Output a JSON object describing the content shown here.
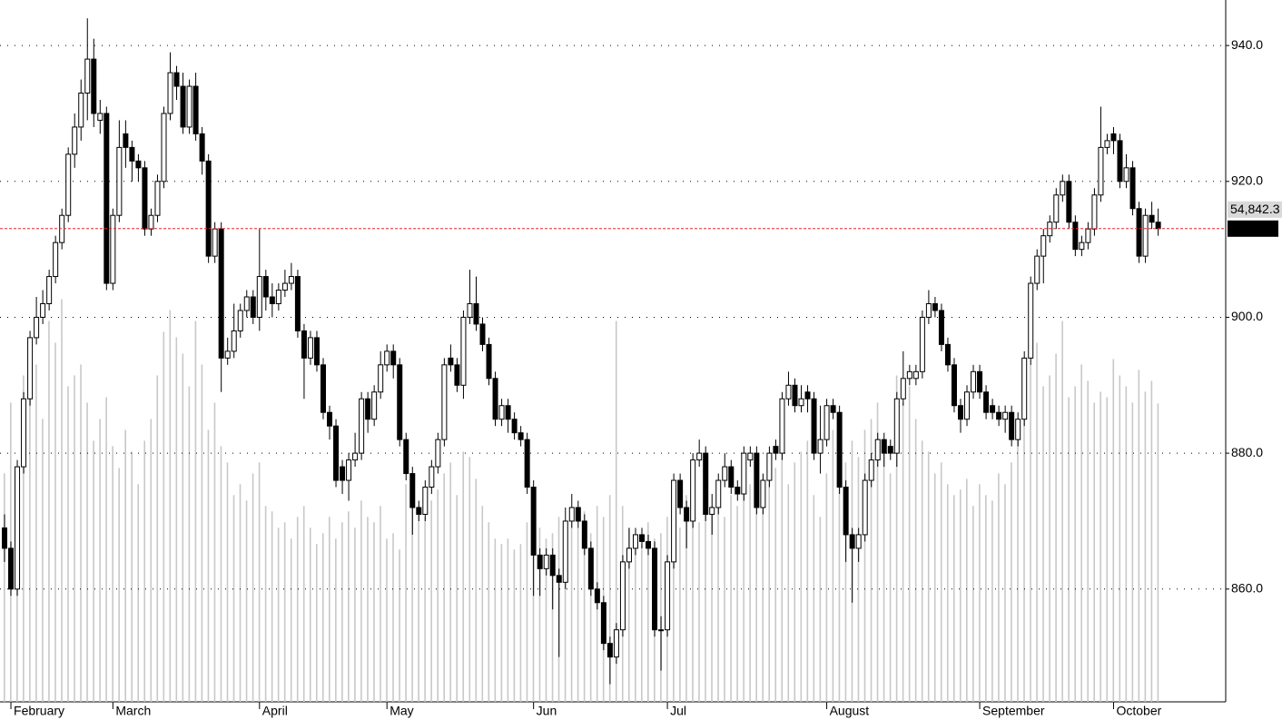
{
  "chart_data": {
    "type": "candlestick",
    "categories": [
      null,
      "February",
      null,
      null,
      null,
      null,
      null,
      null,
      null,
      null,
      null,
      null,
      null,
      null,
      null,
      null,
      null,
      "March",
      null,
      null,
      null,
      null,
      null,
      null,
      null,
      null,
      null,
      null,
      null,
      null,
      null,
      null,
      null,
      null,
      null,
      null,
      null,
      null,
      null,
      null,
      "April",
      null,
      null,
      null,
      null,
      null,
      null,
      null,
      null,
      null,
      null,
      null,
      null,
      null,
      null,
      null,
      null,
      null,
      null,
      null,
      "May",
      null,
      null,
      null,
      null,
      null,
      null,
      null,
      null,
      null,
      null,
      null,
      null,
      null,
      null,
      null,
      null,
      null,
      null,
      null,
      null,
      null,
      null,
      "Jun",
      null,
      null,
      null,
      null,
      null,
      null,
      null,
      null,
      null,
      null,
      null,
      null,
      null,
      null,
      null,
      null,
      null,
      null,
      null,
      null,
      "Jul",
      null,
      null,
      null,
      null,
      null,
      null,
      null,
      null,
      null,
      null,
      null,
      null,
      null,
      null,
      null,
      null,
      null,
      null,
      null,
      null,
      null,
      null,
      null,
      null,
      "August",
      null,
      null,
      null,
      null,
      null,
      null,
      null,
      null,
      null,
      null,
      null,
      null,
      null,
      null,
      null,
      null,
      null,
      null,
      null,
      null,
      null,
      null,
      null,
      "September",
      null,
      null,
      null,
      null,
      null,
      null,
      null,
      null,
      null,
      null,
      null,
      null,
      null,
      null,
      null,
      null,
      null,
      null,
      null,
      null,
      "October",
      null,
      null,
      null,
      null,
      null,
      null,
      null
    ],
    "open": [
      869,
      866,
      860,
      878,
      888,
      897,
      900,
      902,
      906,
      911,
      915,
      924,
      928,
      933,
      938,
      929,
      930,
      905,
      915,
      927,
      925,
      923,
      922,
      913,
      915,
      920,
      930,
      936,
      934,
      928,
      934,
      927,
      923,
      909,
      913,
      894,
      895,
      898,
      901,
      903,
      900,
      906,
      903,
      902,
      904,
      905,
      906,
      898,
      894,
      897,
      893,
      886,
      884,
      878,
      876,
      879,
      880,
      888,
      885,
      889,
      893,
      895,
      893,
      882,
      877,
      872,
      871,
      875,
      878,
      882,
      894,
      893,
      890,
      900,
      902,
      899,
      896,
      891,
      885,
      887,
      885,
      883,
      882,
      875,
      865,
      863,
      865,
      862,
      861,
      870,
      872,
      870,
      866,
      860,
      858,
      852,
      850,
      854,
      864,
      866,
      868,
      867,
      866,
      854,
      854,
      864,
      876,
      872,
      870,
      879,
      880,
      871,
      872,
      876,
      878,
      875,
      874,
      879,
      880,
      872,
      876,
      881,
      880,
      888,
      890,
      887,
      889,
      888,
      880,
      882,
      887,
      886,
      875,
      868,
      866,
      868,
      876,
      879,
      882,
      881,
      880,
      888,
      891,
      891,
      892,
      900,
      902,
      901,
      896,
      893,
      887,
      885,
      889,
      892,
      889,
      887,
      886,
      885,
      886,
      882,
      885,
      894,
      905,
      909,
      912,
      914,
      918,
      920,
      914,
      910,
      911,
      913,
      918,
      925,
      927,
      926,
      920,
      922,
      916,
      909,
      915,
      914
    ],
    "high": [
      871,
      867,
      879,
      889,
      898,
      903,
      904,
      907,
      912,
      916,
      925,
      930,
      935,
      944,
      941,
      932,
      931,
      916,
      929,
      929,
      926,
      924,
      923,
      916,
      921,
      931,
      939,
      937,
      936,
      935,
      936,
      928,
      924,
      914,
      914,
      897,
      902,
      902,
      904,
      904,
      913,
      907,
      905,
      905,
      907,
      908,
      907,
      899,
      898,
      898,
      894,
      887,
      885,
      879,
      880,
      883,
      889,
      889,
      890,
      895,
      896,
      896,
      894,
      883,
      878,
      873,
      876,
      879,
      883,
      894,
      896,
      894,
      901,
      907,
      906,
      900,
      897,
      892,
      888,
      888,
      886,
      884,
      883,
      876,
      866,
      866,
      866,
      863,
      872,
      874,
      873,
      871,
      867,
      861,
      859,
      853,
      855,
      865,
      869,
      869,
      869,
      868,
      867,
      856,
      865,
      877,
      877,
      873,
      880,
      882,
      881,
      874,
      877,
      880,
      879,
      876,
      881,
      881,
      881,
      877,
      881,
      882,
      889,
      892,
      891,
      890,
      890,
      889,
      887,
      888,
      888,
      887,
      876,
      869,
      869,
      877,
      880,
      883,
      883,
      882,
      889,
      895,
      893,
      893,
      901,
      904,
      903,
      902,
      897,
      894,
      888,
      890,
      893,
      893,
      890,
      888,
      887,
      887,
      887,
      886,
      895,
      906,
      910,
      913,
      915,
      919,
      921,
      921,
      915,
      912,
      914,
      919,
      931,
      927,
      928,
      927,
      924,
      923,
      917,
      916,
      917,
      916
    ],
    "low": [
      864,
      859,
      859,
      877,
      887,
      896,
      899,
      901,
      905,
      910,
      914,
      922,
      926,
      929,
      928,
      927,
      904,
      904,
      914,
      922,
      920,
      920,
      912,
      912,
      914,
      919,
      929,
      932,
      927,
      927,
      926,
      921,
      908,
      908,
      889,
      893,
      894,
      897,
      900,
      899,
      898,
      901,
      900,
      901,
      903,
      904,
      897,
      888,
      893,
      892,
      885,
      882,
      875,
      874,
      873,
      878,
      879,
      883,
      884,
      888,
      892,
      891,
      881,
      876,
      868,
      870,
      870,
      874,
      877,
      881,
      892,
      889,
      888,
      899,
      898,
      895,
      890,
      884,
      884,
      883,
      882,
      881,
      874,
      859,
      859,
      862,
      857,
      850,
      860,
      869,
      869,
      865,
      859,
      857,
      851,
      846,
      849,
      853,
      863,
      865,
      866,
      865,
      853,
      848,
      853,
      863,
      871,
      866,
      869,
      878,
      870,
      868,
      871,
      875,
      874,
      873,
      873,
      878,
      871,
      871,
      875,
      879,
      879,
      887,
      886,
      886,
      886,
      879,
      877,
      881,
      885,
      874,
      864,
      858,
      864,
      867,
      875,
      878,
      878,
      879,
      878,
      887,
      890,
      890,
      891,
      899,
      900,
      895,
      892,
      886,
      883,
      884,
      888,
      888,
      885,
      885,
      884,
      883,
      881,
      881,
      884,
      893,
      904,
      905,
      911,
      913,
      917,
      913,
      909,
      909,
      910,
      912,
      917,
      924,
      924,
      919,
      919,
      915,
      908,
      908,
      913,
      912
    ],
    "close": [
      866,
      860,
      878,
      888,
      897,
      900,
      902,
      906,
      911,
      915,
      924,
      928,
      933,
      938,
      930,
      930,
      905,
      915,
      925,
      925,
      923,
      922,
      913,
      915,
      920,
      930,
      936,
      934,
      928,
      934,
      927,
      923,
      909,
      913,
      894,
      895,
      898,
      901,
      903,
      900,
      906,
      903,
      902,
      904,
      905,
      906,
      898,
      894,
      897,
      893,
      886,
      884,
      876,
      876,
      879,
      880,
      888,
      885,
      889,
      893,
      895,
      893,
      882,
      877,
      872,
      871,
      875,
      878,
      882,
      893,
      893,
      890,
      900,
      902,
      899,
      896,
      891,
      885,
      887,
      885,
      883,
      882,
      875,
      865,
      863,
      865,
      862,
      861,
      870,
      872,
      870,
      866,
      860,
      858,
      852,
      850,
      854,
      864,
      866,
      868,
      867,
      866,
      854,
      854,
      864,
      876,
      872,
      870,
      879,
      880,
      871,
      872,
      876,
      878,
      875,
      874,
      880,
      880,
      872,
      876,
      880,
      880,
      888,
      890,
      887,
      888,
      888,
      880,
      882,
      887,
      886,
      875,
      868,
      866,
      868,
      876,
      879,
      882,
      880,
      880,
      888,
      891,
      892,
      892,
      900,
      902,
      901,
      896,
      893,
      887,
      885,
      889,
      892,
      889,
      886,
      886,
      885,
      886,
      882,
      885,
      894,
      905,
      909,
      912,
      914,
      918,
      920,
      914,
      910,
      911,
      913,
      918,
      925,
      926,
      926,
      920,
      922,
      916,
      909,
      915,
      914,
      913.05
    ],
    "volume": [
      42000,
      55000,
      38000,
      60000,
      58000,
      62000,
      52000,
      70000,
      66000,
      74000,
      58000,
      60000,
      62000,
      55000,
      48000,
      52000,
      56000,
      47000,
      43000,
      50000,
      46000,
      40000,
      48000,
      52000,
      60000,
      68000,
      72000,
      67000,
      64000,
      58000,
      70000,
      62000,
      50000,
      55000,
      47000,
      44000,
      38000,
      40000,
      37000,
      42000,
      44000,
      36000,
      35000,
      32000,
      33000,
      30000,
      34000,
      36000,
      32000,
      29000,
      31000,
      34000,
      30000,
      33000,
      35000,
      32000,
      37000,
      34000,
      33000,
      36000,
      30000,
      31000,
      28000,
      40000,
      38000,
      36000,
      34000,
      37000,
      39000,
      42000,
      44000,
      38000,
      46000,
      45000,
      41000,
      36000,
      33000,
      30000,
      29000,
      30000,
      28000,
      29000,
      33000,
      35000,
      32000,
      30000,
      31000,
      34000,
      30000,
      33000,
      32000,
      35000,
      31000,
      36000,
      34000,
      38000,
      70000,
      36000,
      32000,
      30000,
      29000,
      33000,
      30000,
      31000,
      34000,
      36000,
      32000,
      38000,
      35000,
      33000,
      37000,
      36000,
      39000,
      34000,
      38000,
      36000,
      44000,
      40000,
      38000,
      41000,
      45000,
      43000,
      47000,
      40000,
      44000,
      46000,
      48000,
      38000,
      34000,
      42000,
      50000,
      40000,
      44000,
      48000,
      45000,
      50000,
      52000,
      55000,
      46000,
      42000,
      60000,
      55000,
      58000,
      52000,
      48000,
      46000,
      42000,
      44000,
      40000,
      38000,
      39000,
      41000,
      36000,
      40000,
      38000,
      37000,
      42000,
      40000,
      44000,
      48000,
      52000,
      62000,
      66000,
      58000,
      60000,
      64000,
      70000,
      56000,
      58000,
      62000,
      59000,
      55000,
      57000,
      56000,
      63000,
      60000,
      58000,
      55000,
      61000,
      57000,
      59000,
      54842.3
    ],
    "volume_last_label": "54,842.3",
    "ylim": [
      843.4,
      946.7
    ],
    "yticks": [
      {
        "value": 860,
        "label": "860.0"
      },
      {
        "value": 880,
        "label": "880.0"
      },
      {
        "value": 900,
        "label": "900.0"
      },
      {
        "value": 920,
        "label": "920.0"
      },
      {
        "value": 940,
        "label": "940.0"
      }
    ],
    "volume_lim": [
      0,
      129000
    ],
    "grid": true,
    "up_color": "#ffffff",
    "down_color": "#000000",
    "volume_color": "#c8c8c8",
    "last_line_color": "#e3262c"
  }
}
